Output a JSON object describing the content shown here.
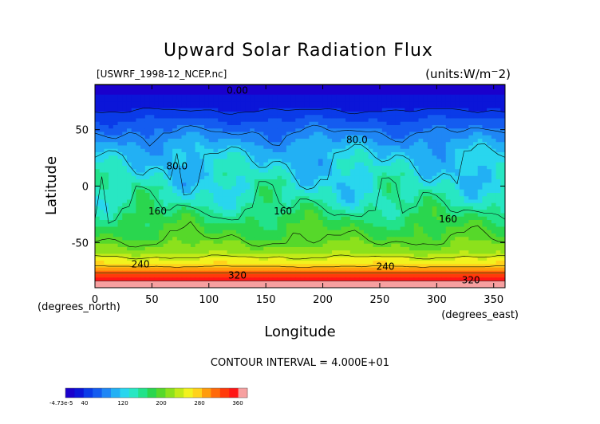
{
  "chart_data": {
    "type": "contour",
    "title": "Upward Solar Radiation Flux",
    "file_label": "[USWRF_1998-12_NCEP.nc]",
    "units_label": "(units:W/m^-2)",
    "xlabel": "Longitude",
    "ylabel": "Latitude",
    "x_unit_label": "(degrees_east)",
    "y_unit_label": "(degrees_north)",
    "xlim": [
      0,
      360
    ],
    "ylim": [
      -90,
      90
    ],
    "x_ticks": [
      0,
      50,
      100,
      150,
      200,
      250,
      300,
      350
    ],
    "x_tick_labels": [
      "0",
      "50",
      "100",
      "150",
      "200",
      "250",
      "300",
      "350"
    ],
    "y_ticks": [
      50,
      0,
      -50
    ],
    "y_tick_labels": [
      "50",
      "0",
      "-50"
    ],
    "contour_interval_text": "CONTOUR INTERVAL = 4.000E+01",
    "contour_levels": [
      0,
      40,
      80,
      120,
      160,
      200,
      240,
      280,
      320,
      360
    ],
    "contour_labels": [
      {
        "text": "0.00",
        "lon": 125,
        "lat": 82
      },
      {
        "text": "80.0",
        "lon": 230,
        "lat": 38
      },
      {
        "text": "80.0",
        "lon": 72,
        "lat": 15
      },
      {
        "text": "160",
        "lon": 55,
        "lat": -25
      },
      {
        "text": "160",
        "lon": 165,
        "lat": -25
      },
      {
        "text": "160",
        "lon": 310,
        "lat": -32
      },
      {
        "text": "240",
        "lon": 40,
        "lat": -72
      },
      {
        "text": "240",
        "lon": 255,
        "lat": -74
      },
      {
        "text": "320",
        "lon": 125,
        "lat": -82
      },
      {
        "text": "320",
        "lon": 330,
        "lat": -86
      }
    ],
    "zonal_profile": [
      {
        "lat": 90,
        "value": 10
      },
      {
        "lat": 72,
        "value": 30
      },
      {
        "lat": 60,
        "value": 55
      },
      {
        "lat": 48,
        "value": 80
      },
      {
        "lat": 40,
        "value": 95
      },
      {
        "lat": 28,
        "value": 115
      },
      {
        "lat": 15,
        "value": 125
      },
      {
        "lat": 0,
        "value": 135
      },
      {
        "lat": -15,
        "value": 150
      },
      {
        "lat": -30,
        "value": 175
      },
      {
        "lat": -45,
        "value": 195
      },
      {
        "lat": -58,
        "value": 220
      },
      {
        "lat": -65,
        "value": 250
      },
      {
        "lat": -72,
        "value": 285
      },
      {
        "lat": -78,
        "value": 330
      },
      {
        "lat": -85,
        "value": 365
      }
    ],
    "colorbar": {
      "labels": [
        "-4.73e-5",
        "40",
        "120",
        "200",
        "280",
        "360"
      ],
      "range": [
        0,
        380
      ],
      "colors": [
        "#1a00cc",
        "#0b15d8",
        "#0a3be8",
        "#145cf0",
        "#1f86f5",
        "#22b0f4",
        "#29d6ee",
        "#28e7c3",
        "#22e28a",
        "#2ad64e",
        "#56d82a",
        "#8ce11c",
        "#c3ea18",
        "#f2f21e",
        "#ffd21a",
        "#ff9c0c",
        "#ff6a0a",
        "#ff3a0a",
        "#ff1616",
        "#f7a0a0"
      ]
    }
  }
}
